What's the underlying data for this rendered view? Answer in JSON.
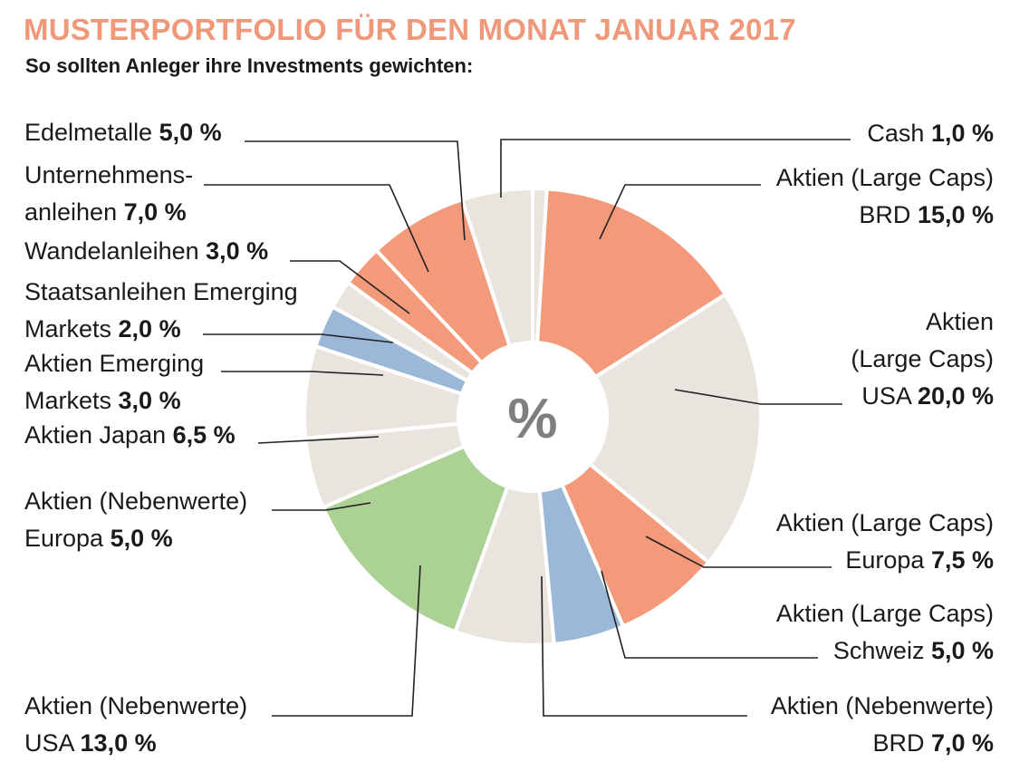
{
  "header": {
    "title": "MUSTERPORTFOLIO FÜR DEN MONAT JANUAR 2017",
    "subtitle": "So sollten Anleger ihre Investments gewichten:"
  },
  "colors": {
    "title": "#f0997a",
    "salmon": "#f29a79",
    "beige": "#e9e5de",
    "blue": "#9bb8d8",
    "green": "#acd195",
    "leader": "#222222",
    "center_text": "#7f7f7f"
  },
  "center_symbol": "%",
  "chart_data": {
    "type": "pie",
    "variant": "donut",
    "title": "MUSTERPORTFOLIO FÜR DEN MONAT JANUAR 2017",
    "subtitle": "So sollten Anleger ihre Investments gewichten:",
    "unit": "%",
    "start": "12 o'clock, clockwise",
    "slices": [
      {
        "label": "Cash",
        "display": "1,0 %",
        "value": 1.0,
        "color": "beige"
      },
      {
        "label": "Aktien (Large Caps) BRD",
        "display": "15,0 %",
        "value": 15.0,
        "color": "salmon"
      },
      {
        "label": "Aktien (Large Caps) USA",
        "display": "20,0 %",
        "value": 20.0,
        "color": "beige"
      },
      {
        "label": "Aktien (Large Caps) Europa",
        "display": "7,5 %",
        "value": 7.5,
        "color": "salmon"
      },
      {
        "label": "Aktien (Large Caps) Schweiz",
        "display": "5,0 %",
        "value": 5.0,
        "color": "blue"
      },
      {
        "label": "Aktien (Nebenwerte) BRD",
        "display": "7,0 %",
        "value": 7.0,
        "color": "beige"
      },
      {
        "label": "Aktien (Nebenwerte) USA",
        "display": "13,0 %",
        "value": 13.0,
        "color": "green"
      },
      {
        "label": "Aktien (Nebenwerte) Europa",
        "display": "5,0 %",
        "value": 5.0,
        "color": "beige"
      },
      {
        "label": "Aktien Japan",
        "display": "6,5 %",
        "value": 6.5,
        "color": "beige"
      },
      {
        "label": "Aktien Emerging Markets",
        "display": "3,0 %",
        "value": 3.0,
        "color": "blue"
      },
      {
        "label": "Staatsanleihen Emerging Markets",
        "display": "2,0 %",
        "value": 2.0,
        "color": "beige"
      },
      {
        "label": "Wandelanleihen",
        "display": "3,0 %",
        "value": 3.0,
        "color": "salmon"
      },
      {
        "label": "Unternehmensanleihen",
        "display": "7,0 %",
        "value": 7.0,
        "color": "salmon"
      },
      {
        "label": "Edelmetalle",
        "display": "5,0 %",
        "value": 5.0,
        "color": "beige"
      }
    ]
  },
  "labels": [
    {
      "lines": [
        "Cash "
      ],
      "value": "1,0 %"
    },
    {
      "lines": [
        "Aktien (Large Caps)",
        "BRD "
      ],
      "value": "15,0 %"
    },
    {
      "lines": [
        "Aktien",
        "(Large Caps)",
        "USA "
      ],
      "value": "20,0 %"
    },
    {
      "lines": [
        "Aktien (Large Caps)",
        "Europa "
      ],
      "value": "7,5 %"
    },
    {
      "lines": [
        "Aktien (Large Caps)",
        "Schweiz "
      ],
      "value": "5,0 %"
    },
    {
      "lines": [
        "Aktien (Nebenwerte)",
        "BRD "
      ],
      "value": "7,0 %"
    },
    {
      "lines": [
        "Aktien (Nebenwerte)",
        "USA "
      ],
      "value": "13,0 %"
    },
    {
      "lines": [
        "Aktien (Nebenwerte)",
        "Europa "
      ],
      "value": "5,0 %"
    },
    {
      "lines": [
        "Aktien Japan "
      ],
      "value": "6,5 %"
    },
    {
      "lines": [
        "Aktien Emerging",
        "Markets "
      ],
      "value": "3,0 %"
    },
    {
      "lines": [
        "Staatsanleihen Emerging",
        "Markets "
      ],
      "value": "2,0 %"
    },
    {
      "lines": [
        "Wandelanleihen "
      ],
      "value": "3,0 %"
    },
    {
      "lines": [
        "Unternehmens-",
        "anleihen "
      ],
      "value": "7,0 %"
    },
    {
      "lines": [
        "Edelmetalle "
      ],
      "value": "5,0 %"
    }
  ]
}
